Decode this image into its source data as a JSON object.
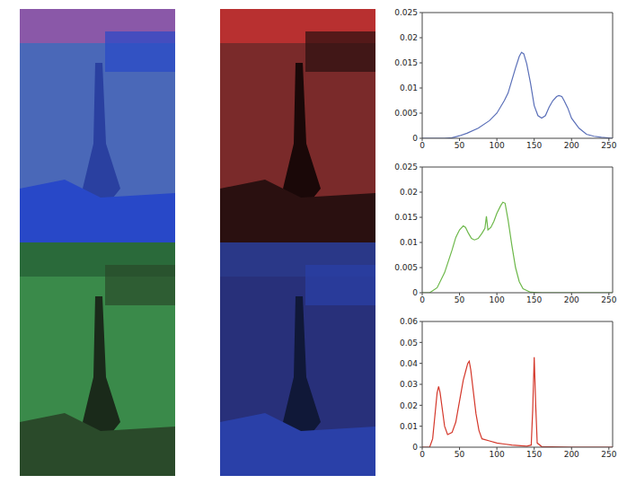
{
  "chart_data": [
    {
      "type": "line",
      "color": "#5a6fb8",
      "x": [
        0,
        30,
        40,
        50,
        60,
        75,
        90,
        100,
        110,
        115,
        120,
        125,
        130,
        133,
        136,
        140,
        145,
        150,
        155,
        160,
        165,
        170,
        175,
        180,
        183,
        187,
        190,
        195,
        200,
        210,
        220,
        230,
        240,
        255
      ],
      "values": [
        0,
        0,
        0.0001,
        0.0005,
        0.001,
        0.002,
        0.0035,
        0.005,
        0.0075,
        0.009,
        0.0115,
        0.014,
        0.0163,
        0.0171,
        0.0168,
        0.0148,
        0.011,
        0.0065,
        0.0045,
        0.004,
        0.0045,
        0.0062,
        0.0075,
        0.0083,
        0.0085,
        0.0083,
        0.0075,
        0.006,
        0.004,
        0.002,
        0.0008,
        0.0004,
        0.0002,
        0
      ],
      "xlim": [
        0,
        255
      ],
      "xticks": [
        0,
        50,
        100,
        150,
        200,
        250
      ],
      "ylim": [
        0,
        0.025
      ],
      "yticks": [
        0,
        0.005,
        0.01,
        0.015,
        0.02,
        0.025
      ]
    },
    {
      "type": "line",
      "color": "#6db84a",
      "x": [
        0,
        10,
        20,
        30,
        40,
        45,
        50,
        55,
        58,
        62,
        66,
        70,
        75,
        80,
        84,
        86,
        88,
        92,
        96,
        100,
        105,
        108,
        111,
        115,
        120,
        125,
        130,
        135,
        145,
        160,
        200,
        255
      ],
      "values": [
        0,
        0,
        0.001,
        0.004,
        0.0085,
        0.011,
        0.0125,
        0.0133,
        0.013,
        0.0118,
        0.0108,
        0.0105,
        0.0108,
        0.0118,
        0.0128,
        0.0152,
        0.0125,
        0.013,
        0.0142,
        0.0158,
        0.0173,
        0.018,
        0.0178,
        0.0145,
        0.0095,
        0.005,
        0.0022,
        0.0008,
        0.0001,
        0,
        0,
        0
      ],
      "xlim": [
        0,
        255
      ],
      "xticks": [
        0,
        50,
        100,
        150,
        200,
        250
      ],
      "ylim": [
        0,
        0.025
      ],
      "yticks": [
        0,
        0.005,
        0.01,
        0.015,
        0.02,
        0.025
      ]
    },
    {
      "type": "line",
      "color": "#d4372a",
      "x": [
        0,
        10,
        14,
        17,
        20,
        22,
        24,
        27,
        30,
        34,
        40,
        45,
        50,
        55,
        58,
        61,
        63,
        65,
        68,
        72,
        76,
        80,
        90,
        100,
        110,
        120,
        140,
        146,
        148,
        150,
        152,
        154,
        160,
        200,
        255
      ],
      "values": [
        0,
        0,
        0.004,
        0.015,
        0.026,
        0.029,
        0.026,
        0.018,
        0.01,
        0.006,
        0.007,
        0.012,
        0.022,
        0.032,
        0.036,
        0.04,
        0.041,
        0.037,
        0.028,
        0.016,
        0.008,
        0.004,
        0.003,
        0.002,
        0.0015,
        0.001,
        0.0005,
        0.001,
        0.018,
        0.043,
        0.02,
        0.002,
        0.0003,
        0,
        0
      ],
      "xlim": [
        0,
        255
      ],
      "xticks": [
        0,
        50,
        100,
        150,
        200,
        250
      ],
      "ylim": [
        0,
        0.06
      ],
      "yticks": [
        0,
        0.01,
        0.02,
        0.03,
        0.04,
        0.05,
        0.06
      ]
    }
  ]
}
